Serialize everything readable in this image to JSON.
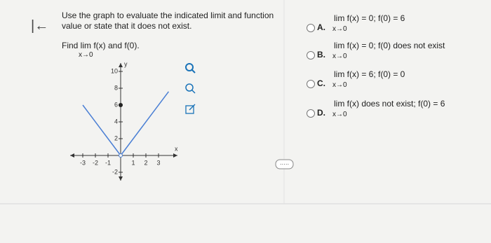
{
  "back_icon": "|←",
  "question": {
    "lines": [
      "Use the graph to evaluate the indicated limit and function",
      "value or state that it does not exist."
    ],
    "find": "Find lim f(x) and f(0).",
    "find_sub": "x→0"
  },
  "graph": {
    "x_label": "x",
    "y_label": "y",
    "xlim": [
      -4,
      4.5
    ],
    "ylim": [
      -3,
      11
    ],
    "xticks": [
      -3,
      -2,
      -1,
      1,
      2,
      3
    ],
    "yticks": [
      -2,
      2,
      4,
      6,
      8,
      10
    ],
    "segments": [
      {
        "x": [
          -3,
          0
        ],
        "y": [
          6,
          0
        ]
      },
      {
        "x": [
          0,
          3.8
        ],
        "y": [
          0,
          7.6
        ]
      }
    ],
    "point": {
      "x": 0,
      "y": 6
    },
    "color": "#4a7fd4"
  },
  "options": [
    {
      "letter": "A.",
      "text": "lim f(x) = 0; f(0) = 6",
      "sub": "x→0"
    },
    {
      "letter": "B.",
      "text": "lim f(x) = 0; f(0) does not exist",
      "sub": "x→0"
    },
    {
      "letter": "C.",
      "text": "lim f(x) = 6; f(0) = 0",
      "sub": "x→0"
    },
    {
      "letter": "D.",
      "text": "lim f(x) does not exist; f(0) = 6",
      "sub": "x→0"
    }
  ]
}
